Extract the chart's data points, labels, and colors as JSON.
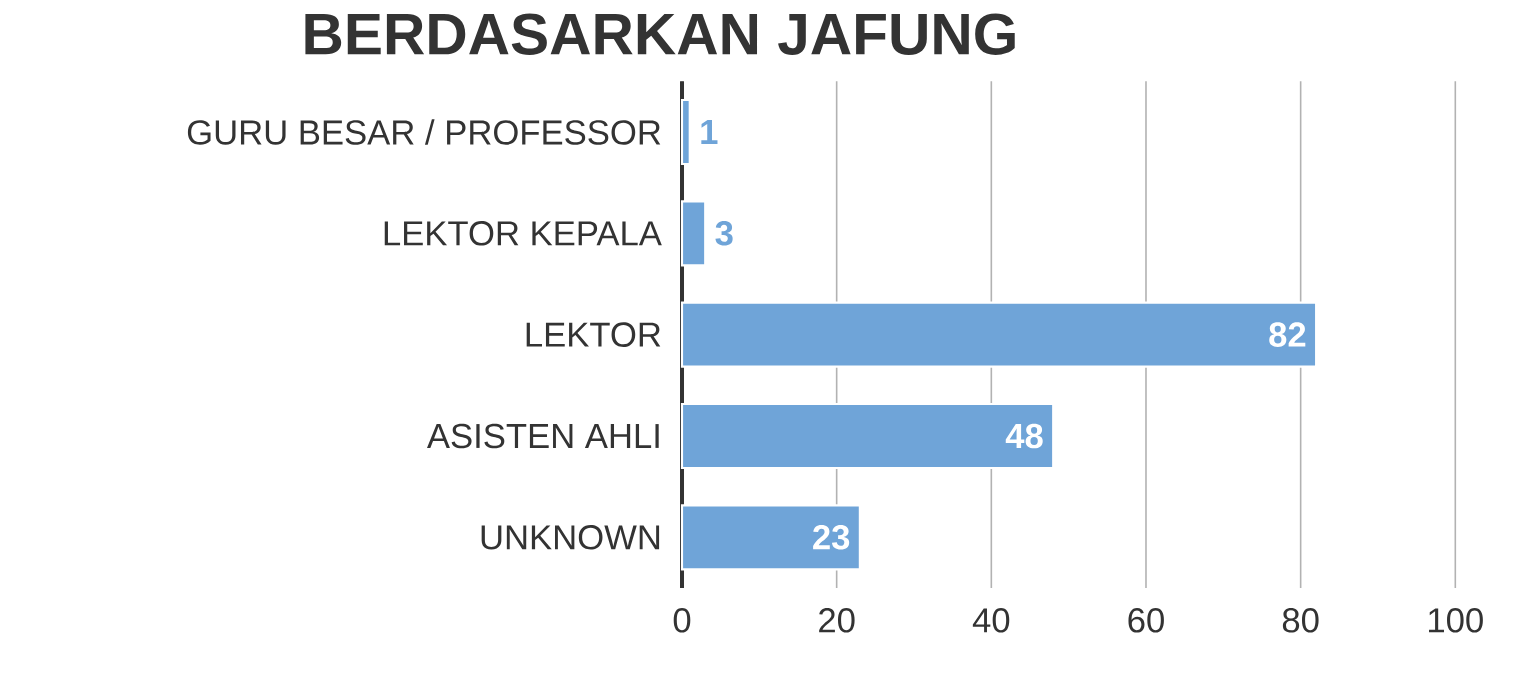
{
  "chart_data": {
    "type": "bar",
    "orientation": "horizontal",
    "title": "BERDASARKAN JAFUNG",
    "categories": [
      "GURU BESAR / PROFESSOR",
      "LEKTOR KEPALA",
      "LEKTOR",
      "ASISTEN AHLI",
      "UNKNOWN"
    ],
    "values": [
      1,
      3,
      82,
      48,
      23
    ],
    "color": "#6fa4d8",
    "xlim": [
      0,
      100
    ],
    "xticks": [
      0,
      20,
      40,
      60,
      80,
      100
    ],
    "grid": "x",
    "data_labels": true
  }
}
